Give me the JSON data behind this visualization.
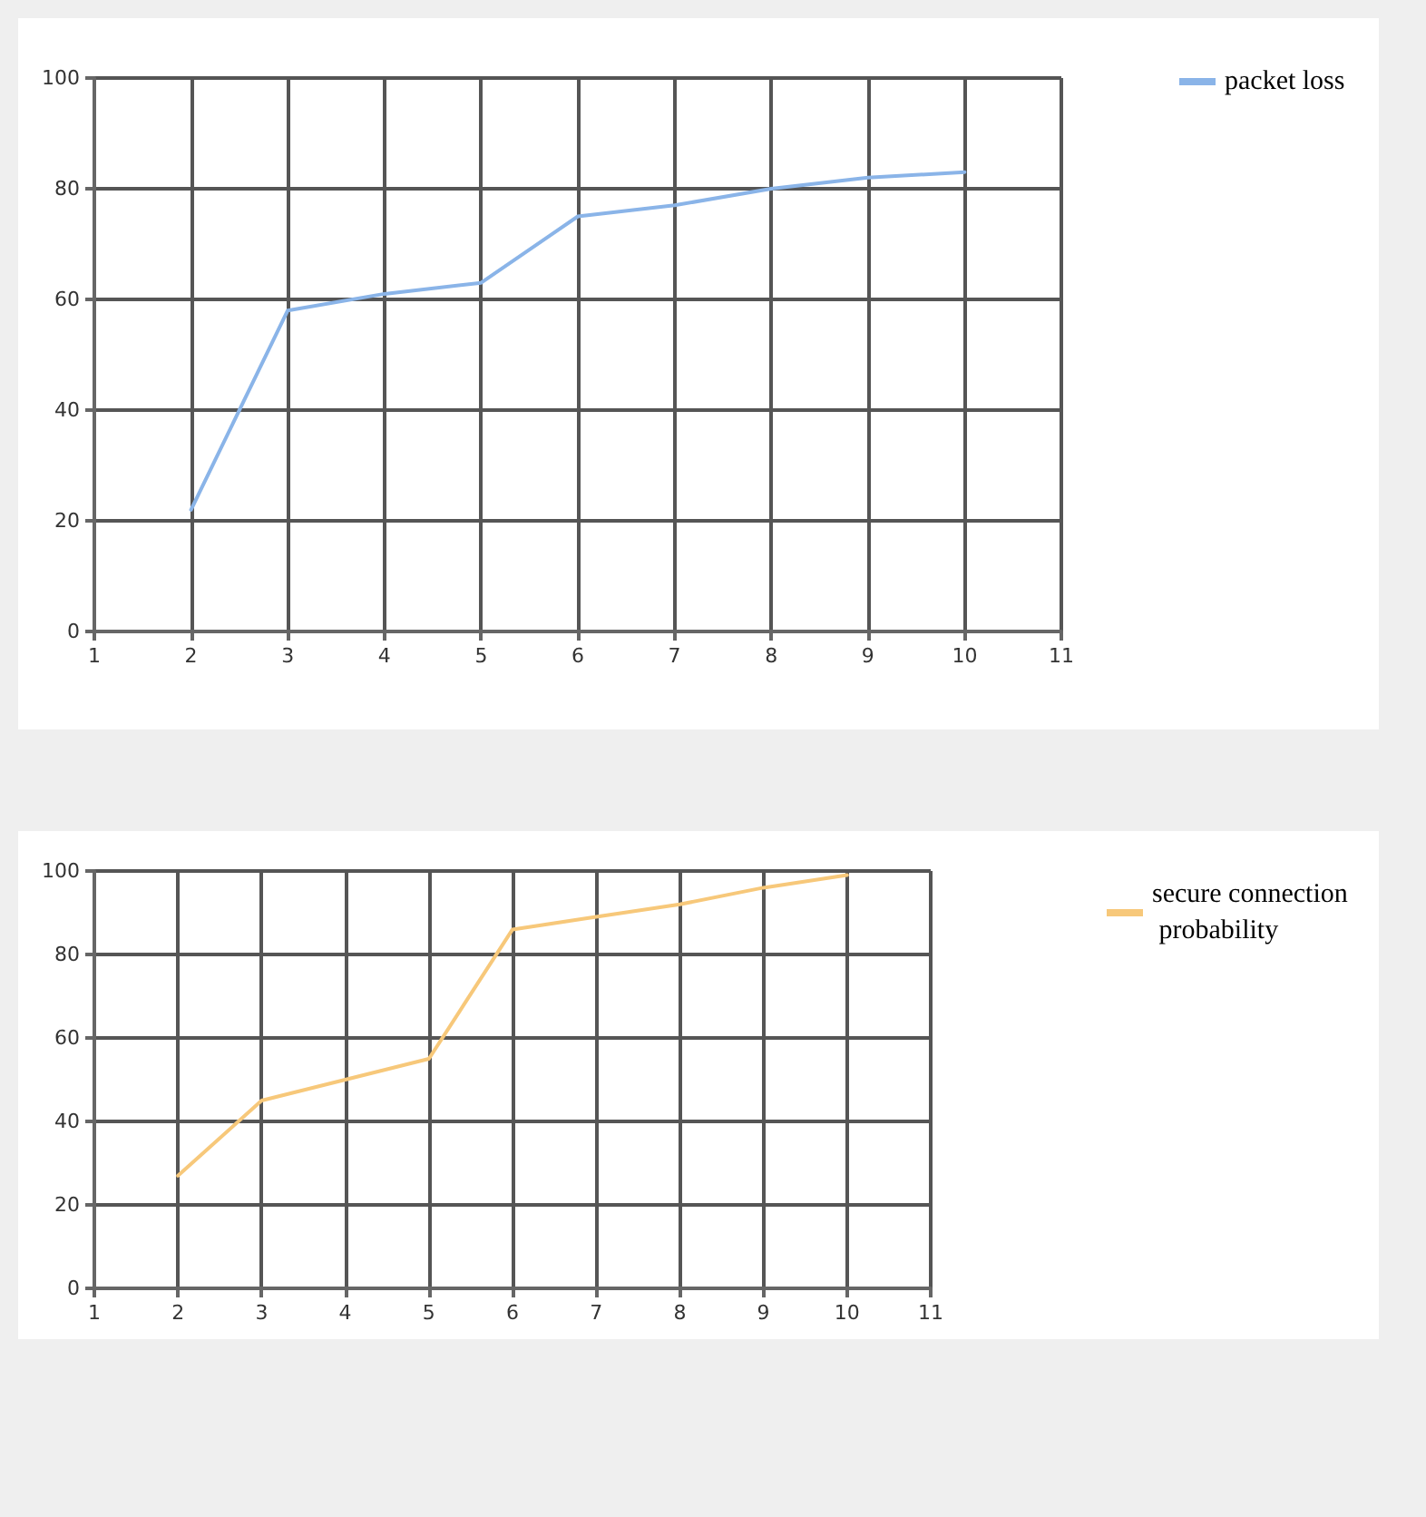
{
  "chart_data": [
    {
      "type": "line",
      "x": [
        2,
        3,
        4,
        5,
        6,
        7,
        8,
        9,
        10
      ],
      "series": [
        {
          "name": "packet loss",
          "color": "#8ab4e8",
          "values": [
            22,
            58,
            61,
            63,
            75,
            77,
            80,
            82,
            83
          ]
        }
      ],
      "xlim": [
        1,
        11
      ],
      "xticks": [
        1,
        2,
        3,
        4,
        5,
        6,
        7,
        8,
        9,
        10,
        11
      ],
      "ylim": [
        0,
        100
      ],
      "yticks": [
        0,
        20,
        40,
        60,
        80,
        100
      ],
      "grid": true,
      "legend": "top right",
      "marker": "none",
      "line_style": "solid"
    },
    {
      "type": "line",
      "x": [
        2,
        3,
        4,
        5,
        6,
        7,
        8,
        9,
        10
      ],
      "series": [
        {
          "name": "secure connection probability",
          "color": "#f7c87a",
          "values": [
            27,
            45,
            50,
            55,
            86,
            89,
            92,
            96,
            99
          ]
        }
      ],
      "xlim": [
        1,
        11
      ],
      "xticks": [
        1,
        2,
        3,
        4,
        5,
        6,
        7,
        8,
        9,
        10,
        11
      ],
      "ylim": [
        0,
        100
      ],
      "yticks": [
        0,
        20,
        40,
        60,
        80,
        100
      ],
      "grid": true,
      "legend": "top right",
      "marker": "none",
      "line_style": "solid"
    }
  ]
}
